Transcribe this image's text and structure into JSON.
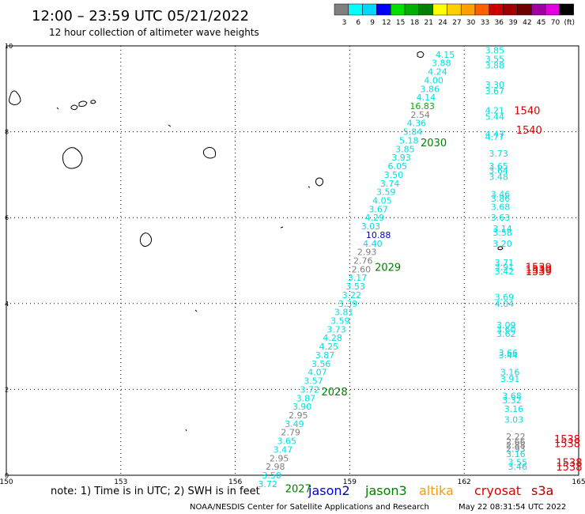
{
  "header": {
    "title": "12:00 – 23:59 UTC 05/21/2022",
    "subtitle": "12 hour collection of altimeter wave heights"
  },
  "colorbar": {
    "labels": [
      "3",
      "6",
      "9",
      "12",
      "15",
      "18",
      "21",
      "24",
      "27",
      "30",
      "33",
      "36",
      "39",
      "42",
      "45",
      "70",
      "(ft)"
    ],
    "colors": [
      "#808080",
      "#00ffff",
      "#00d8ff",
      "#0000ff",
      "#00e000",
      "#00b000",
      "#008000",
      "#ffff00",
      "#ffd000",
      "#ffa000",
      "#ff6000",
      "#d00000",
      "#a00000",
      "#700000",
      "#a000a0",
      "#e000e0",
      "#000000"
    ]
  },
  "footer": {
    "note": "note:  1) Time is in UTC;  2) SWH is in feet",
    "satellites": [
      {
        "name": "jason2",
        "color": "#0000c8"
      },
      {
        "name": "jason3",
        "color": "#008000"
      },
      {
        "name": "altika",
        "color": "#ff9900"
      },
      {
        "name": "cryosat",
        "color": "#e00000"
      },
      {
        "name": "s3a",
        "color": "#b00000"
      }
    ],
    "credit": "NOAA/NESDIS Center for Satellite Applications and Research",
    "timestamp": "May 22 08:31:54 UTC 2022"
  },
  "chart_data": {
    "type": "scatter",
    "xlim": [
      150,
      165
    ],
    "ylim": [
      0,
      10
    ],
    "x_ticks": [
      "150",
      "153",
      "156",
      "159",
      "162",
      "165"
    ],
    "y_ticks": [
      "0",
      "2",
      "4",
      "6",
      "8",
      "10"
    ],
    "grid": true,
    "series": [
      {
        "points": [
          {
            "x": 161.5,
            "y": 9.8,
            "label": "4.15",
            "color": "#00e0e0"
          },
          {
            "x": 161.4,
            "y": 9.6,
            "label": "3.88",
            "color": "#00e0e0"
          },
          {
            "x": 161.3,
            "y": 9.4,
            "label": "4.24",
            "color": "#00e0e0"
          },
          {
            "x": 161.2,
            "y": 9.2,
            "label": "4.00",
            "color": "#00e0e0"
          },
          {
            "x": 161.1,
            "y": 9.0,
            "label": "3.86",
            "color": "#00e0e0"
          },
          {
            "x": 161.0,
            "y": 8.8,
            "label": "4.14",
            "color": "#00e0e0"
          },
          {
            "x": 160.9,
            "y": 8.6,
            "label": "16.83",
            "color": "#00b000"
          },
          {
            "x": 160.85,
            "y": 8.4,
            "label": "2.54",
            "color": "#808080"
          },
          {
            "x": 160.75,
            "y": 8.2,
            "label": "4.36",
            "color": "#00e0e0"
          },
          {
            "x": 160.65,
            "y": 8.0,
            "label": "5.84",
            "color": "#00e0e0"
          },
          {
            "x": 160.55,
            "y": 7.8,
            "label": "5.18",
            "color": "#00e0e0"
          },
          {
            "x": 160.45,
            "y": 7.6,
            "label": "3.85",
            "color": "#00e0e0"
          },
          {
            "x": 160.35,
            "y": 7.4,
            "label": "3.93",
            "color": "#00e0e0"
          },
          {
            "x": 160.25,
            "y": 7.2,
            "label": "6.05",
            "color": "#00e0e0"
          },
          {
            "x": 160.15,
            "y": 7.0,
            "label": "3.50",
            "color": "#00e0e0"
          },
          {
            "x": 160.05,
            "y": 6.8,
            "label": "3.74",
            "color": "#00e0e0"
          },
          {
            "x": 159.95,
            "y": 6.6,
            "label": "3.59",
            "color": "#00e0e0"
          },
          {
            "x": 159.85,
            "y": 6.4,
            "label": "4.05",
            "color": "#00e0e0"
          },
          {
            "x": 159.75,
            "y": 6.2,
            "label": "3.67",
            "color": "#00e0e0"
          },
          {
            "x": 159.65,
            "y": 6.0,
            "label": "4.29",
            "color": "#00e0e0"
          },
          {
            "x": 159.55,
            "y": 5.8,
            "label": "3.03",
            "color": "#00e0e0"
          },
          {
            "x": 159.75,
            "y": 5.6,
            "label": "10.88",
            "color": "#0000c8"
          },
          {
            "x": 159.6,
            "y": 5.4,
            "label": "4.40",
            "color": "#00e0e0"
          },
          {
            "x": 159.45,
            "y": 5.2,
            "label": "2.93",
            "color": "#808080"
          },
          {
            "x": 159.35,
            "y": 5.0,
            "label": "2.76",
            "color": "#808080"
          },
          {
            "x": 159.3,
            "y": 4.8,
            "label": "2.60",
            "color": "#808080"
          },
          {
            "x": 159.2,
            "y": 4.6,
            "label": "3.17",
            "color": "#00e0e0"
          },
          {
            "x": 159.15,
            "y": 4.4,
            "label": "3.53",
            "color": "#00e0e0"
          },
          {
            "x": 159.05,
            "y": 4.2,
            "label": "3.22",
            "color": "#00e0e0"
          },
          {
            "x": 158.95,
            "y": 4.0,
            "label": "3.39",
            "color": "#00e0e0"
          },
          {
            "x": 158.85,
            "y": 3.8,
            "label": "3.81",
            "color": "#00e0e0"
          },
          {
            "x": 158.75,
            "y": 3.6,
            "label": "3.59",
            "color": "#00e0e0"
          },
          {
            "x": 158.65,
            "y": 3.4,
            "label": "3.73",
            "color": "#00e0e0"
          },
          {
            "x": 158.55,
            "y": 3.2,
            "label": "4.28",
            "color": "#00e0e0"
          },
          {
            "x": 158.45,
            "y": 3.0,
            "label": "4.25",
            "color": "#00e0e0"
          },
          {
            "x": 158.35,
            "y": 2.8,
            "label": "3.87",
            "color": "#00e0e0"
          },
          {
            "x": 158.25,
            "y": 2.6,
            "label": "3.56",
            "color": "#00e0e0"
          },
          {
            "x": 158.15,
            "y": 2.4,
            "label": "4.07",
            "color": "#00e0e0"
          },
          {
            "x": 158.05,
            "y": 2.2,
            "label": "3.57",
            "color": "#00e0e0"
          },
          {
            "x": 157.95,
            "y": 2.0,
            "label": "3.72",
            "color": "#00e0e0"
          },
          {
            "x": 157.85,
            "y": 1.8,
            "label": "3.87",
            "color": "#00e0e0"
          },
          {
            "x": 157.75,
            "y": 1.6,
            "label": "3.90",
            "color": "#00e0e0"
          },
          {
            "x": 157.65,
            "y": 1.4,
            "label": "2.95",
            "color": "#808080"
          },
          {
            "x": 157.55,
            "y": 1.2,
            "label": "3.49",
            "color": "#00e0e0"
          },
          {
            "x": 157.45,
            "y": 1.0,
            "label": "2.79",
            "color": "#808080"
          },
          {
            "x": 157.35,
            "y": 0.8,
            "label": "3.65",
            "color": "#00e0e0"
          },
          {
            "x": 157.25,
            "y": 0.6,
            "label": "3.47",
            "color": "#00e0e0"
          },
          {
            "x": 157.15,
            "y": 0.4,
            "label": "2.95",
            "color": "#808080"
          },
          {
            "x": 157.05,
            "y": 0.2,
            "label": "2.98",
            "color": "#808080"
          },
          {
            "x": 156.95,
            "y": 0.0,
            "label": "3.50",
            "color": "#00e0e0"
          },
          {
            "x": 156.85,
            "y": -0.2,
            "label": "3.72",
            "color": "#00e0e0"
          },
          {
            "x": 162.8,
            "y": 9.9,
            "label": "3.85",
            "color": "#00e0e0"
          },
          {
            "x": 162.8,
            "y": 9.7,
            "label": "3.55",
            "color": "#00e0e0"
          },
          {
            "x": 162.8,
            "y": 9.55,
            "label": "3.88",
            "color": "#00e0e0"
          },
          {
            "x": 162.8,
            "y": 9.1,
            "label": "3.30",
            "color": "#00e0e0"
          },
          {
            "x": 162.8,
            "y": 8.95,
            "label": "3.67",
            "color": "#00e0e0"
          },
          {
            "x": 162.8,
            "y": 8.5,
            "label": "4.21",
            "color": "#00e0e0"
          },
          {
            "x": 162.8,
            "y": 8.35,
            "label": "5.44",
            "color": "#00e0e0"
          },
          {
            "x": 162.8,
            "y": 7.95,
            "label": "4.47",
            "color": "#00e0e0"
          },
          {
            "x": 162.8,
            "y": 7.88,
            "label": "4.77",
            "color": "#00e0e0"
          },
          {
            "x": 162.9,
            "y": 7.5,
            "label": "3.73",
            "color": "#00e0e0"
          },
          {
            "x": 162.9,
            "y": 7.2,
            "label": "3.65",
            "color": "#00e0e0"
          },
          {
            "x": 162.9,
            "y": 7.1,
            "label": "3.64",
            "color": "#00e0e0"
          },
          {
            "x": 162.9,
            "y": 6.95,
            "label": "3.48",
            "color": "#00e0e0"
          },
          {
            "x": 162.95,
            "y": 6.55,
            "label": "3.46",
            "color": "#00e0e0"
          },
          {
            "x": 162.95,
            "y": 6.45,
            "label": "3.86",
            "color": "#00e0e0"
          },
          {
            "x": 162.95,
            "y": 6.25,
            "label": "3.68",
            "color": "#00e0e0"
          },
          {
            "x": 162.95,
            "y": 6.0,
            "label": "3.63",
            "color": "#00e0e0"
          },
          {
            "x": 163.0,
            "y": 5.75,
            "label": "3.14",
            "color": "#00e0e0"
          },
          {
            "x": 163.0,
            "y": 5.65,
            "label": "3.58",
            "color": "#00e0e0"
          },
          {
            "x": 163.0,
            "y": 5.4,
            "label": "3.20",
            "color": "#00e0e0"
          },
          {
            "x": 163.05,
            "y": 4.95,
            "label": "3.71",
            "color": "#00e0e0"
          },
          {
            "x": 163.05,
            "y": 4.85,
            "label": "3.91",
            "color": "#00e0e0"
          },
          {
            "x": 163.05,
            "y": 4.75,
            "label": "3.42",
            "color": "#00e0e0"
          },
          {
            "x": 163.05,
            "y": 4.15,
            "label": "3.69",
            "color": "#00e0e0"
          },
          {
            "x": 163.05,
            "y": 4.0,
            "label": "4.04",
            "color": "#00e0e0"
          },
          {
            "x": 163.1,
            "y": 3.5,
            "label": "3.09",
            "color": "#00e0e0"
          },
          {
            "x": 163.1,
            "y": 3.4,
            "label": "3.60",
            "color": "#00e0e0"
          },
          {
            "x": 163.1,
            "y": 3.3,
            "label": "3.62",
            "color": "#00e0e0"
          },
          {
            "x": 163.15,
            "y": 2.85,
            "label": "3.66",
            "color": "#00e0e0"
          },
          {
            "x": 163.15,
            "y": 2.8,
            "label": "3.44",
            "color": "#00e0e0"
          },
          {
            "x": 163.2,
            "y": 2.4,
            "label": "3.16",
            "color": "#00e0e0"
          },
          {
            "x": 163.2,
            "y": 2.25,
            "label": "3.91",
            "color": "#00e0e0"
          },
          {
            "x": 163.25,
            "y": 1.85,
            "label": "3.68",
            "color": "#00e0e0"
          },
          {
            "x": 163.25,
            "y": 1.75,
            "label": "3.32",
            "color": "#00e0e0"
          },
          {
            "x": 163.3,
            "y": 1.55,
            "label": "3.16",
            "color": "#00e0e0"
          },
          {
            "x": 163.3,
            "y": 1.3,
            "label": "3.03",
            "color": "#00e0e0"
          },
          {
            "x": 163.35,
            "y": 0.9,
            "label": "2.22",
            "color": "#808080"
          },
          {
            "x": 163.35,
            "y": 0.78,
            "label": "2.66",
            "color": "#808080"
          },
          {
            "x": 163.35,
            "y": 0.7,
            "label": "2.88",
            "color": "#808080"
          },
          {
            "x": 163.35,
            "y": 0.62,
            "label": "2.93",
            "color": "#808080"
          },
          {
            "x": 163.35,
            "y": 0.5,
            "label": "3.16",
            "color": "#00e0e0"
          },
          {
            "x": 163.4,
            "y": 0.3,
            "label": "3.55",
            "color": "#00e0e0"
          },
          {
            "x": 163.4,
            "y": 0.2,
            "label": "3.46",
            "color": "#00e0e0"
          }
        ]
      }
    ],
    "time_labels": [
      {
        "x": 161.2,
        "y": 7.75,
        "text": "2030",
        "color": "#008000"
      },
      {
        "x": 160.0,
        "y": 4.85,
        "text": "2029",
        "color": "#008000"
      },
      {
        "x": 158.6,
        "y": 1.95,
        "text": "2028",
        "color": "#008000"
      },
      {
        "x": 157.65,
        "y": -0.3,
        "text": "2027",
        "color": "#008000"
      },
      {
        "x": 163.65,
        "y": 8.5,
        "text": "1540",
        "color": "#e00000"
      },
      {
        "x": 163.7,
        "y": 8.05,
        "text": "1540",
        "color": "#e00000"
      },
      {
        "x": 163.95,
        "y": 4.85,
        "text": "1539",
        "color": "#e00000"
      },
      {
        "x": 163.95,
        "y": 4.8,
        "text": "1539",
        "color": "#e00000"
      },
      {
        "x": 163.95,
        "y": 4.75,
        "text": "1539",
        "color": "#e00000"
      },
      {
        "x": 164.7,
        "y": 0.85,
        "text": "1538",
        "color": "#e00000"
      },
      {
        "x": 164.7,
        "y": 0.75,
        "text": "1538",
        "color": "#e00000"
      },
      {
        "x": 164.75,
        "y": 0.3,
        "text": "1538",
        "color": "#e00000"
      },
      {
        "x": 164.75,
        "y": 0.2,
        "text": "1538",
        "color": "#e00000"
      }
    ]
  }
}
